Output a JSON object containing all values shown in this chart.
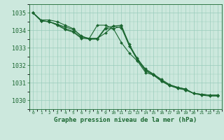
{
  "title": "Graphe pression niveau de la mer (hPa)",
  "bg_color": "#cce8dd",
  "grid_color": "#99ccbb",
  "line_color": "#1a6630",
  "x_ticks": [
    0,
    1,
    2,
    3,
    4,
    5,
    6,
    7,
    8,
    9,
    10,
    11,
    12,
    13,
    14,
    15,
    16,
    17,
    18,
    19,
    20,
    21,
    22,
    23
  ],
  "xlim": [
    -0.5,
    23.5
  ],
  "ylim": [
    1029.5,
    1035.5
  ],
  "y_ticks": [
    1030,
    1031,
    1032,
    1033,
    1034,
    1035
  ],
  "series": [
    [
      1035.0,
      1034.6,
      1034.6,
      1034.5,
      1034.3,
      1034.1,
      1033.65,
      1033.55,
      1034.3,
      1034.3,
      1034.1,
      1033.3,
      1032.7,
      1032.25,
      1031.6,
      1031.45,
      1031.1,
      1030.85,
      1030.7,
      1030.6,
      1030.4,
      1030.35,
      1030.3,
      1030.3
    ],
    [
      1035.0,
      1034.55,
      1034.5,
      1034.35,
      1034.1,
      1033.95,
      1033.6,
      1033.5,
      1033.55,
      1034.15,
      1034.25,
      1034.15,
      1033.1,
      1032.4,
      1031.75,
      1031.5,
      1031.15,
      1030.9,
      1030.75,
      1030.65,
      1030.4,
      1030.35,
      1030.3,
      1030.3
    ],
    [
      1035.0,
      1034.55,
      1034.5,
      1034.3,
      1034.05,
      1033.9,
      1033.55,
      1033.55,
      1033.55,
      1033.85,
      1034.25,
      1034.3,
      1033.1,
      1032.3,
      1031.7,
      1031.45,
      1031.1,
      1030.85,
      1030.7,
      1030.6,
      1030.4,
      1030.3,
      1030.25,
      1030.25
    ],
    [
      1035.0,
      1034.55,
      1034.5,
      1034.35,
      1034.2,
      1034.05,
      1033.7,
      1033.5,
      1033.5,
      1034.1,
      1034.1,
      1034.25,
      1033.2,
      1032.35,
      1031.8,
      1031.5,
      1031.2,
      1030.9,
      1030.75,
      1030.65,
      1030.4,
      1030.35,
      1030.3,
      1030.3
    ]
  ],
  "title_fontsize": 6.5,
  "ytick_fontsize": 6,
  "xtick_fontsize": 4.5
}
